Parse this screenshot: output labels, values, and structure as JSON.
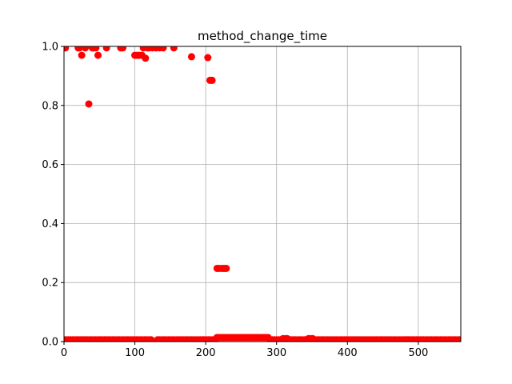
{
  "chart_data": {
    "type": "scatter",
    "title": "method_change_time",
    "xlabel": "",
    "ylabel": "",
    "xlim": [
      0,
      560
    ],
    "ylim": [
      0,
      1.0
    ],
    "xticks": [
      0,
      100,
      200,
      300,
      400,
      500
    ],
    "yticks": [
      0.0,
      0.2,
      0.4,
      0.6,
      0.8,
      1.0
    ],
    "xtick_labels": [
      "0",
      "100",
      "200",
      "300",
      "400",
      "500"
    ],
    "ytick_labels": [
      "0.0",
      "0.2",
      "0.4",
      "0.6",
      "0.8",
      "1.0"
    ],
    "grid": true,
    "marker_color": "#ff0000",
    "series": [
      {
        "x": [
          2,
          20,
          22,
          25,
          30,
          35,
          40,
          42,
          45,
          48,
          60,
          80,
          83,
          100,
          103,
          106,
          110,
          112,
          115,
          118,
          120,
          125,
          130,
          135,
          140,
          155,
          180,
          203,
          206,
          209,
          216,
          219,
          223,
          226,
          229
        ],
        "y": [
          0.995,
          0.995,
          0.995,
          0.97,
          0.995,
          0.805,
          0.995,
          0.995,
          0.995,
          0.97,
          0.995,
          0.995,
          0.995,
          0.97,
          0.97,
          0.97,
          0.97,
          0.995,
          0.96,
          0.995,
          0.995,
          0.995,
          0.995,
          0.995,
          0.995,
          0.995,
          0.965,
          0.962,
          0.885,
          0.885,
          0.248,
          0.248,
          0.248,
          0.248,
          0.248
        ]
      },
      {
        "x_range": [
          0,
          560
        ],
        "x_step": 3,
        "y_baseline": 0.006,
        "y_bump": [
          [
            215,
            290,
            0.014
          ],
          [
            345,
            352,
            0.01
          ],
          [
            308,
            315,
            0.01
          ]
        ]
      }
    ]
  }
}
